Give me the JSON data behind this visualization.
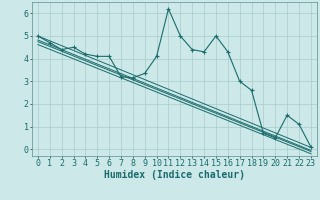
{
  "title": "",
  "xlabel": "Humidex (Indice chaleur)",
  "ylabel": "",
  "background_color": "#cce8e8",
  "grid_color": "#aacccc",
  "line_color": "#1a6b6b",
  "xlim": [
    -0.5,
    23.5
  ],
  "ylim": [
    -0.3,
    6.5
  ],
  "xticks": [
    0,
    1,
    2,
    3,
    4,
    5,
    6,
    7,
    8,
    9,
    10,
    11,
    12,
    13,
    14,
    15,
    16,
    17,
    18,
    19,
    20,
    21,
    22,
    23
  ],
  "yticks": [
    0,
    1,
    2,
    3,
    4,
    5,
    6
  ],
  "x": [
    0,
    1,
    2,
    3,
    4,
    5,
    6,
    7,
    8,
    9,
    10,
    11,
    12,
    13,
    14,
    15,
    16,
    17,
    18,
    19,
    20,
    21,
    22,
    23
  ],
  "y_main": [
    5.0,
    4.7,
    4.4,
    4.5,
    4.2,
    4.1,
    4.1,
    3.2,
    3.15,
    3.35,
    4.1,
    6.2,
    5.0,
    4.4,
    4.3,
    5.0,
    4.3,
    3.0,
    2.6,
    0.7,
    0.5,
    1.5,
    1.1,
    0.1
  ],
  "regression_lines": [
    {
      "x0": 0,
      "y0": 5.0,
      "x1": 23,
      "y1": 0.08
    },
    {
      "x0": 0,
      "y0": 4.82,
      "x1": 23,
      "y1": -0.05
    },
    {
      "x0": 0,
      "y0": 4.75,
      "x1": 23,
      "y1": -0.1
    },
    {
      "x0": 0,
      "y0": 4.62,
      "x1": 23,
      "y1": -0.2
    }
  ],
  "tick_fontsize": 6,
  "xlabel_fontsize": 7
}
